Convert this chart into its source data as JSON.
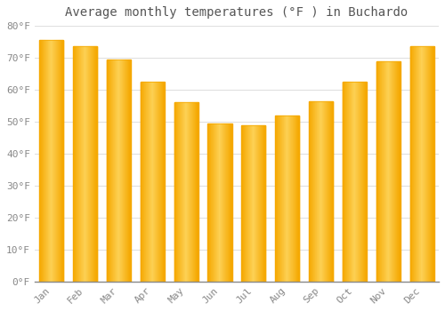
{
  "title": "Average monthly temperatures (°F ) in Buchardo",
  "months": [
    "Jan",
    "Feb",
    "Mar",
    "Apr",
    "May",
    "Jun",
    "Jul",
    "Aug",
    "Sep",
    "Oct",
    "Nov",
    "Dec"
  ],
  "values": [
    75.5,
    73.5,
    69.5,
    62.5,
    56.0,
    49.5,
    49.0,
    52.0,
    56.5,
    62.5,
    69.0,
    73.5
  ],
  "bar_color_center": "#FDD155",
  "bar_color_edge": "#F5A800",
  "ylim": [
    0,
    80
  ],
  "yticks": [
    0,
    10,
    20,
    30,
    40,
    50,
    60,
    70,
    80
  ],
  "ytick_labels": [
    "0°F",
    "10°F",
    "20°F",
    "30°F",
    "40°F",
    "50°F",
    "60°F",
    "70°F",
    "80°F"
  ],
  "bg_color": "#FFFFFF",
  "plot_bg_color": "#FFFFFF",
  "grid_color": "#E0E0E0",
  "title_fontsize": 10,
  "tick_fontsize": 8,
  "font_family": "monospace",
  "bar_width": 0.72
}
